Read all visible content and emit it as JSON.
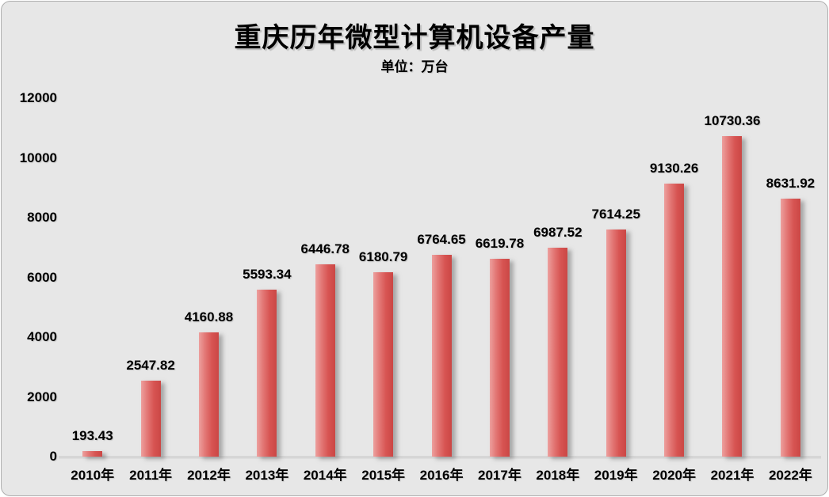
{
  "header": {
    "title": "重庆历年微型计算机设备产量",
    "unit_label": "单位：万台"
  },
  "chart_data": {
    "type": "bar",
    "title": "重庆历年微型计算机设备产量",
    "subtitle": "单位：万台",
    "categories": [
      "2010年",
      "2011年",
      "2012年",
      "2013年",
      "2014年",
      "2015年",
      "2016年",
      "2017年",
      "2018年",
      "2019年",
      "2020年",
      "2021年",
      "2022年"
    ],
    "values": [
      193.43,
      2547.82,
      4160.88,
      5593.34,
      6446.78,
      6180.79,
      6764.65,
      6619.78,
      6987.52,
      7614.25,
      9130.26,
      10730.36,
      8631.92
    ],
    "xlabel": "",
    "ylabel": "",
    "ylim": [
      0,
      12000
    ],
    "yticks": [
      0,
      2000,
      4000,
      6000,
      8000,
      10000,
      12000
    ],
    "grid": false,
    "legend": false,
    "data_labels": true,
    "colors": {
      "panel_background": "#e7e7e7",
      "panel_border": "#aeaeae",
      "bar_gradient": [
        "#eda09e",
        "#d75452",
        "#cb4745"
      ],
      "axis_line": "#d6d6d6",
      "text": "#000000"
    }
  }
}
